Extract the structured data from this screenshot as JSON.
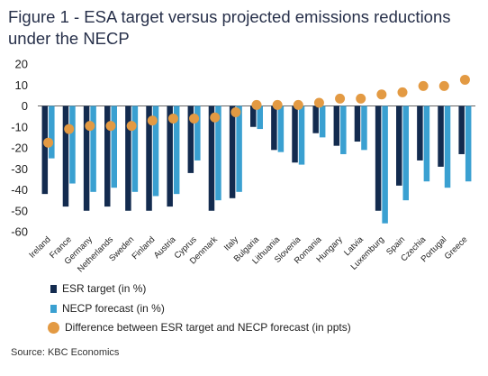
{
  "page": {
    "title": "Figure 1 - ESA target versus projected emissions reductions under the NECP",
    "source": "Source: KBC Economics"
  },
  "colors": {
    "esr": "#132b4f",
    "necp": "#3aa0d1",
    "diff": "#e39a43"
  },
  "chart_data": {
    "type": "bar",
    "categories": [
      "Ireland",
      "France",
      "Germany",
      "Netherlands",
      "Sweden",
      "Finland",
      "Austria",
      "Cyprus",
      "Denmark",
      "Italy",
      "Bulgaria",
      "Lithuania",
      "Slovenia",
      "Romania",
      "Hungary",
      "Latvia",
      "Luxemburg",
      "Spain",
      "Czechia",
      "Portugal",
      "Greece"
    ],
    "ylim": [
      -60,
      20
    ],
    "yticks": [
      20,
      10,
      0,
      -10,
      -20,
      -30,
      -40,
      -50,
      -60
    ],
    "series": [
      {
        "name": "ESR target (in %)",
        "kind": "bar",
        "values": [
          -42,
          -48,
          -50,
          -48,
          -50,
          -50,
          -48,
          -32,
          -50,
          -44,
          -10,
          -21,
          -27,
          -13,
          -19,
          -17,
          -50,
          -38,
          -26,
          -29,
          -23
        ]
      },
      {
        "name": "NECP forecast (in %)",
        "kind": "bar",
        "values": [
          -25,
          -37,
          -41,
          -39,
          -41,
          -43,
          -42,
          -26,
          -45,
          -41,
          -11,
          -22,
          -28,
          -15,
          -23,
          -21,
          -56,
          -45,
          -36,
          -39,
          -36
        ]
      },
      {
        "name": "Difference between ESR target and NECP forecast (in ppts)",
        "kind": "scatter",
        "values": [
          -17.5,
          -11,
          -9.5,
          -9.5,
          -9.5,
          -7,
          -6,
          -6,
          -5.5,
          -3,
          0.5,
          0.5,
          0.5,
          1.5,
          3.5,
          3.5,
          5.5,
          6.5,
          9.5,
          9.5,
          12.5
        ]
      }
    ]
  }
}
